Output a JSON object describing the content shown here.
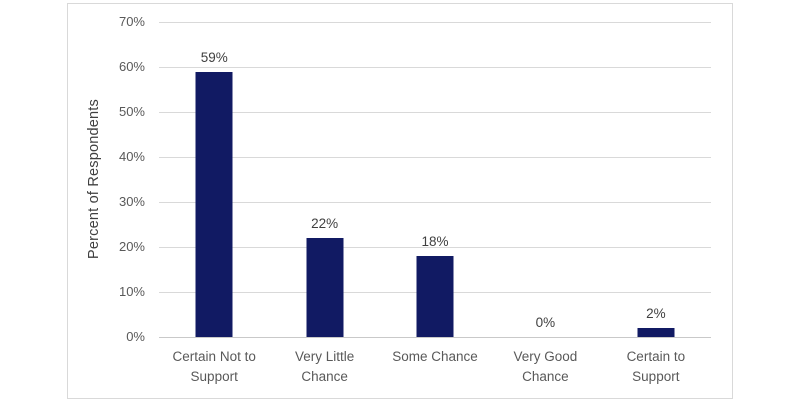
{
  "chart_data": {
    "type": "bar",
    "title": "",
    "categories": [
      "Certain Not to Support",
      "Very Little Chance",
      "Some Chance",
      "Very Good Chance",
      "Certain to Support"
    ],
    "values": [
      59,
      22,
      18,
      0,
      2
    ],
    "data_labels": [
      "59%",
      "22%",
      "18%",
      "0%",
      "2%"
    ],
    "xlabel": "",
    "ylabel": "Percent of Respondents",
    "ylim": [
      0,
      70
    ],
    "yticks": [
      0,
      10,
      20,
      30,
      40,
      50,
      60,
      70
    ],
    "ytick_labels": [
      "0%",
      "10%",
      "20%",
      "30%",
      "40%",
      "50%",
      "60%",
      "70%"
    ],
    "grid": "horizontal",
    "legend": "none",
    "colors": {
      "bar": "#111A63",
      "gridline": "#D9D9D9",
      "axis_line": "#C9C9C9",
      "tick_text": "#595959",
      "category_text": "#595959",
      "data_label_text": "#404040",
      "frame_border": "#D9D9D9",
      "background": "#FFFFFF"
    }
  }
}
